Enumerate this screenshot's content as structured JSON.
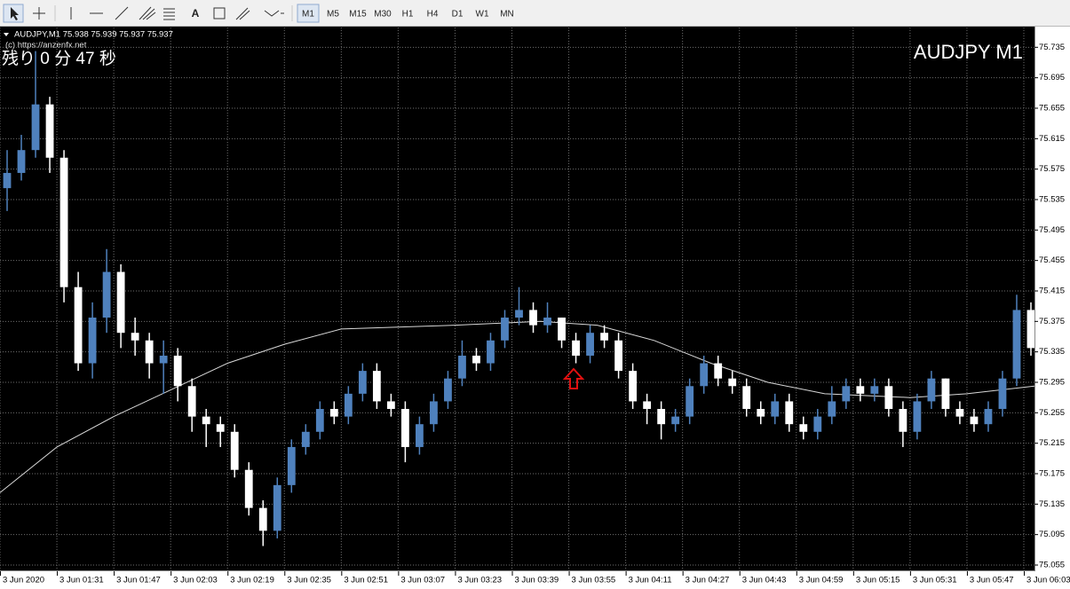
{
  "toolbar": {
    "text_tool": "A",
    "timeframes": [
      "M1",
      "M5",
      "M15",
      "M30",
      "H1",
      "H4",
      "D1",
      "W1",
      "MN"
    ]
  },
  "chart_data": {
    "type": "candlestick",
    "info": "AUDJPY,M1  75.938 75.939 75.937 75.937",
    "copyright": "(c) https://anzenfx.net",
    "countdown": "残り 0 分 47 秒",
    "title": "AUDJPY M1",
    "up_color": "#4f81bd",
    "down_color": "#ffffff",
    "grid": true,
    "x": [
      2,
      6,
      10,
      14,
      18,
      22,
      26,
      30,
      34,
      38,
      42,
      46,
      50,
      54,
      58,
      62,
      66,
      70,
      74,
      78,
      82,
      86,
      90,
      94,
      98,
      102,
      106,
      110,
      114,
      118,
      122,
      126,
      130,
      134,
      138,
      142,
      146,
      150,
      154,
      158,
      162,
      166,
      170,
      174,
      178,
      182,
      186,
      190,
      194,
      198,
      202,
      206,
      210,
      214,
      218,
      222,
      226,
      230,
      234,
      238,
      242,
      246,
      250,
      254,
      258,
      262,
      266,
      270,
      274,
      278,
      282,
      286,
      290
    ],
    "open": [
      75.55,
      75.57,
      75.6,
      75.66,
      75.59,
      75.42,
      75.32,
      75.38,
      75.44,
      75.36,
      75.35,
      75.32,
      75.33,
      75.29,
      75.25,
      75.24,
      75.23,
      75.18,
      75.13,
      75.1,
      75.16,
      75.21,
      75.23,
      75.26,
      75.25,
      75.28,
      75.31,
      75.27,
      75.26,
      75.21,
      75.24,
      75.27,
      75.3,
      75.33,
      75.32,
      75.35,
      75.38,
      75.39,
      75.37,
      75.38,
      75.35,
      75.33,
      75.36,
      75.35,
      75.31,
      75.27,
      75.26,
      75.24,
      75.25,
      75.29,
      75.32,
      75.3,
      75.29,
      75.26,
      75.25,
      75.27,
      75.24,
      75.23,
      75.25,
      75.27,
      75.29,
      75.28,
      75.29,
      75.26,
      75.23,
      75.27,
      75.3,
      75.26,
      75.25,
      75.24,
      75.26,
      75.3,
      75.39
    ],
    "high": [
      75.6,
      75.62,
      75.73,
      75.67,
      75.6,
      75.44,
      75.4,
      75.47,
      75.45,
      75.38,
      75.36,
      75.35,
      75.34,
      75.3,
      75.26,
      75.25,
      75.24,
      75.19,
      75.14,
      75.17,
      75.22,
      75.24,
      75.27,
      75.27,
      75.29,
      75.32,
      75.32,
      75.28,
      75.27,
      75.25,
      75.28,
      75.31,
      75.35,
      75.34,
      75.36,
      75.39,
      75.42,
      75.4,
      75.4,
      75.38,
      75.36,
      75.37,
      75.37,
      75.36,
      75.32,
      75.28,
      75.27,
      75.26,
      75.3,
      75.33,
      75.33,
      75.31,
      75.3,
      75.27,
      75.28,
      75.28,
      75.25,
      75.26,
      75.29,
      75.3,
      75.3,
      75.3,
      75.3,
      75.27,
      75.28,
      75.31,
      75.3,
      75.27,
      75.26,
      75.27,
      75.31,
      75.41,
      75.4
    ],
    "low": [
      75.52,
      75.56,
      75.59,
      75.57,
      75.4,
      75.31,
      75.3,
      75.36,
      75.34,
      75.33,
      75.3,
      75.28,
      75.27,
      75.23,
      75.21,
      75.21,
      75.17,
      75.12,
      75.08,
      75.09,
      75.15,
      75.2,
      75.22,
      75.24,
      75.24,
      75.27,
      75.26,
      75.25,
      75.19,
      75.2,
      75.23,
      75.26,
      75.29,
      75.31,
      75.31,
      75.34,
      75.37,
      75.36,
      75.36,
      75.34,
      75.32,
      75.32,
      75.34,
      75.3,
      75.26,
      75.24,
      75.22,
      75.23,
      75.24,
      75.28,
      75.29,
      75.28,
      75.25,
      75.24,
      75.24,
      75.23,
      75.22,
      75.22,
      75.24,
      75.26,
      75.27,
      75.27,
      75.25,
      75.21,
      75.22,
      75.26,
      75.25,
      75.24,
      75.23,
      75.23,
      75.25,
      75.29,
      75.33
    ],
    "close": [
      75.57,
      75.6,
      75.66,
      75.59,
      75.42,
      75.32,
      75.38,
      75.44,
      75.36,
      75.35,
      75.32,
      75.33,
      75.29,
      75.25,
      75.24,
      75.23,
      75.18,
      75.13,
      75.1,
      75.16,
      75.21,
      75.23,
      75.26,
      75.25,
      75.28,
      75.31,
      75.27,
      75.26,
      75.21,
      75.24,
      75.27,
      75.3,
      75.33,
      75.32,
      75.35,
      75.38,
      75.39,
      75.37,
      75.38,
      75.35,
      75.33,
      75.36,
      75.35,
      75.31,
      75.27,
      75.26,
      75.24,
      75.25,
      75.29,
      75.32,
      75.3,
      75.29,
      75.26,
      75.25,
      75.27,
      75.24,
      75.23,
      75.25,
      75.27,
      75.29,
      75.28,
      75.29,
      75.26,
      75.23,
      75.27,
      75.3,
      75.26,
      75.25,
      75.24,
      75.26,
      75.3,
      75.39,
      75.34
    ],
    "ma": {
      "color": "#d8d8d8",
      "x": [
        0,
        16,
        32,
        48,
        64,
        80,
        96,
        128,
        152,
        168,
        184,
        200,
        216,
        232,
        256,
        272,
        291
      ],
      "values": [
        75.15,
        75.21,
        75.25,
        75.285,
        75.32,
        75.345,
        75.365,
        75.37,
        75.375,
        75.37,
        75.35,
        75.32,
        75.295,
        75.28,
        75.275,
        75.28,
        75.29
      ]
    },
    "xlim": [
      0,
      291
    ],
    "ylim": [
      75.048,
      75.761
    ],
    "xticks": [
      {
        "value": 0,
        "label": "3 Jun 2020"
      },
      {
        "value": 16,
        "label": "3 Jun 01:31"
      },
      {
        "value": 32,
        "label": "3 Jun 01:47"
      },
      {
        "value": 48,
        "label": "3 Jun 02:03"
      },
      {
        "value": 64,
        "label": "3 Jun 02:19"
      },
      {
        "value": 80,
        "label": "3 Jun 02:35"
      },
      {
        "value": 96,
        "label": "3 Jun 02:51"
      },
      {
        "value": 112,
        "label": "3 Jun 03:07"
      },
      {
        "value": 128,
        "label": "3 Jun 03:23"
      },
      {
        "value": 144,
        "label": "3 Jun 03:39"
      },
      {
        "value": 160,
        "label": "3 Jun 03:55"
      },
      {
        "value": 176,
        "label": "3 Jun 04:11"
      },
      {
        "value": 192,
        "label": "3 Jun 04:27"
      },
      {
        "value": 208,
        "label": "3 Jun 04:43"
      },
      {
        "value": 224,
        "label": "3 Jun 04:59"
      },
      {
        "value": 240,
        "label": "3 Jun 05:15"
      },
      {
        "value": 256,
        "label": "3 Jun 05:31"
      },
      {
        "value": 272,
        "label": "3 Jun 05:47"
      },
      {
        "value": 288,
        "label": "3 Jun 06:03"
      }
    ],
    "yticks": [
      75.735,
      75.695,
      75.655,
      75.615,
      75.575,
      75.535,
      75.495,
      75.455,
      75.415,
      75.375,
      75.335,
      75.295,
      75.255,
      75.215,
      75.175,
      75.135,
      75.095,
      75.055
    ]
  }
}
